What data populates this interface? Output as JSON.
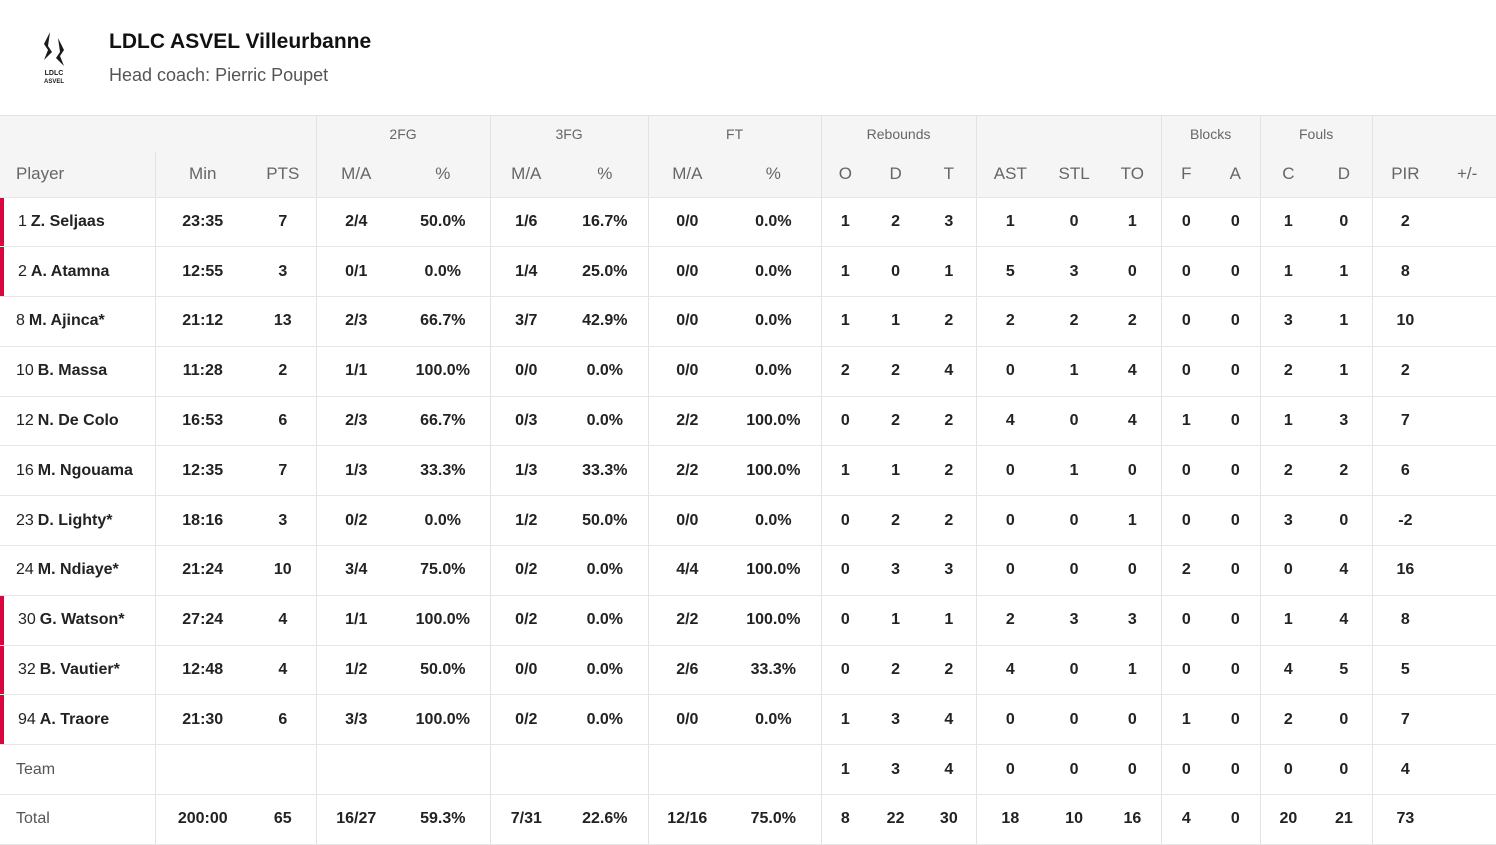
{
  "team": {
    "name": "LDLC ASVEL Villeurbanne",
    "coach": "Head coach: Pierric Poupet",
    "logo_text_top": "LDLC",
    "logo_text_bottom": "ASVEL",
    "accent_color": "#d7063f"
  },
  "groups": {
    "fg2": "2FG",
    "fg3": "3FG",
    "ft": "FT",
    "rebounds": "Rebounds",
    "blocks": "Blocks",
    "fouls": "Fouls"
  },
  "columns": [
    "Player",
    "Min",
    "PTS",
    "M/A",
    "%",
    "M/A",
    "%",
    "M/A",
    "%",
    "O",
    "D",
    "T",
    "AST",
    "STL",
    "TO",
    "F",
    "A",
    "C",
    "D",
    "PIR",
    "+/-"
  ],
  "players": [
    {
      "number": "1",
      "name": "Z. Seljaas",
      "starter": true,
      "stats": [
        "23:35",
        "7",
        "2/4",
        "50.0%",
        "1/6",
        "16.7%",
        "0/0",
        "0.0%",
        "1",
        "2",
        "3",
        "1",
        "0",
        "1",
        "0",
        "0",
        "1",
        "0",
        "2",
        ""
      ]
    },
    {
      "number": "2",
      "name": "A. Atamna",
      "starter": true,
      "stats": [
        "12:55",
        "3",
        "0/1",
        "0.0%",
        "1/4",
        "25.0%",
        "0/0",
        "0.0%",
        "1",
        "0",
        "1",
        "5",
        "3",
        "0",
        "0",
        "0",
        "1",
        "1",
        "8",
        ""
      ]
    },
    {
      "number": "8",
      "name": "M. Ajinca*",
      "starter": false,
      "stats": [
        "21:12",
        "13",
        "2/3",
        "66.7%",
        "3/7",
        "42.9%",
        "0/0",
        "0.0%",
        "1",
        "1",
        "2",
        "2",
        "2",
        "2",
        "0",
        "0",
        "3",
        "1",
        "10",
        ""
      ]
    },
    {
      "number": "10",
      "name": "B. Massa",
      "starter": false,
      "stats": [
        "11:28",
        "2",
        "1/1",
        "100.0%",
        "0/0",
        "0.0%",
        "0/0",
        "0.0%",
        "2",
        "2",
        "4",
        "0",
        "1",
        "4",
        "0",
        "0",
        "2",
        "1",
        "2",
        ""
      ]
    },
    {
      "number": "12",
      "name": "N. De Colo",
      "starter": false,
      "stats": [
        "16:53",
        "6",
        "2/3",
        "66.7%",
        "0/3",
        "0.0%",
        "2/2",
        "100.0%",
        "0",
        "2",
        "2",
        "4",
        "0",
        "4",
        "1",
        "0",
        "1",
        "3",
        "7",
        ""
      ]
    },
    {
      "number": "16",
      "name": "M. Ngouama",
      "starter": false,
      "stats": [
        "12:35",
        "7",
        "1/3",
        "33.3%",
        "1/3",
        "33.3%",
        "2/2",
        "100.0%",
        "1",
        "1",
        "2",
        "0",
        "1",
        "0",
        "0",
        "0",
        "2",
        "2",
        "6",
        ""
      ]
    },
    {
      "number": "23",
      "name": "D. Lighty*",
      "starter": false,
      "stats": [
        "18:16",
        "3",
        "0/2",
        "0.0%",
        "1/2",
        "50.0%",
        "0/0",
        "0.0%",
        "0",
        "2",
        "2",
        "0",
        "0",
        "1",
        "0",
        "0",
        "3",
        "0",
        "-2",
        ""
      ]
    },
    {
      "number": "24",
      "name": "M. Ndiaye*",
      "starter": false,
      "stats": [
        "21:24",
        "10",
        "3/4",
        "75.0%",
        "0/2",
        "0.0%",
        "4/4",
        "100.0%",
        "0",
        "3",
        "3",
        "0",
        "0",
        "0",
        "2",
        "0",
        "0",
        "4",
        "16",
        ""
      ]
    },
    {
      "number": "30",
      "name": "G. Watson*",
      "starter": true,
      "stats": [
        "27:24",
        "4",
        "1/1",
        "100.0%",
        "0/2",
        "0.0%",
        "2/2",
        "100.0%",
        "0",
        "1",
        "1",
        "2",
        "3",
        "3",
        "0",
        "0",
        "1",
        "4",
        "8",
        ""
      ]
    },
    {
      "number": "32",
      "name": "B. Vautier*",
      "starter": true,
      "stats": [
        "12:48",
        "4",
        "1/2",
        "50.0%",
        "0/0",
        "0.0%",
        "2/6",
        "33.3%",
        "0",
        "2",
        "2",
        "4",
        "0",
        "1",
        "0",
        "0",
        "4",
        "5",
        "5",
        ""
      ]
    },
    {
      "number": "94",
      "name": "A. Traore",
      "starter": true,
      "stats": [
        "21:30",
        "6",
        "3/3",
        "100.0%",
        "0/2",
        "0.0%",
        "0/0",
        "0.0%",
        "1",
        "3",
        "4",
        "0",
        "0",
        "0",
        "1",
        "0",
        "2",
        "0",
        "7",
        ""
      ]
    }
  ],
  "team_row": {
    "label": "Team",
    "stats": [
      "",
      "",
      "",
      "",
      "",
      "",
      "",
      "",
      "1",
      "3",
      "4",
      "0",
      "0",
      "0",
      "0",
      "0",
      "0",
      "0",
      "4",
      ""
    ]
  },
  "total_row": {
    "label": "Total",
    "stats": [
      "200:00",
      "65",
      "16/27",
      "59.3%",
      "7/31",
      "22.6%",
      "12/16",
      "75.0%",
      "8",
      "22",
      "30",
      "18",
      "10",
      "16",
      "4",
      "0",
      "20",
      "21",
      "73",
      ""
    ]
  }
}
